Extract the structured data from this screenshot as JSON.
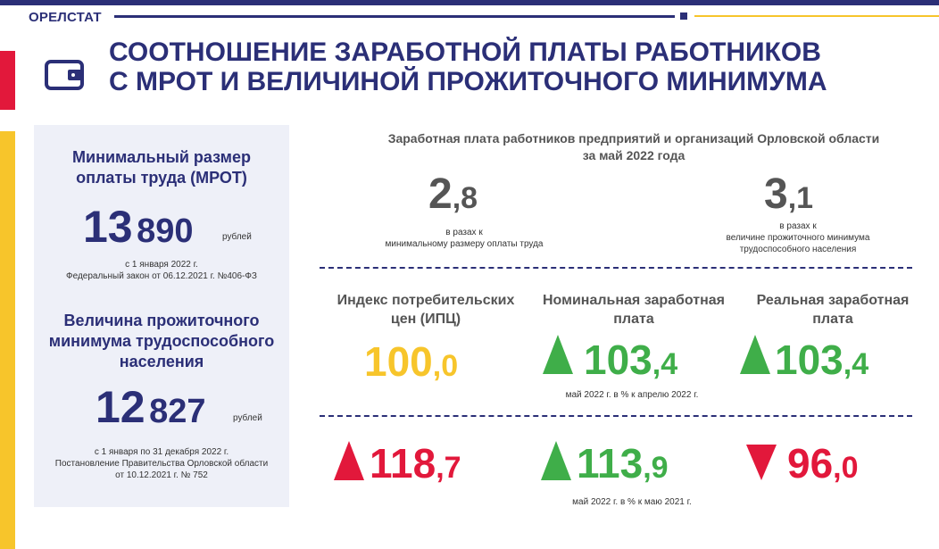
{
  "header": {
    "brand": "ОРЕЛСТАТ",
    "title_line1": "СООТНОШЕНИЕ ЗАРАБОТНОЙ ПЛАТЫ РАБОТНИКОВ",
    "title_line2": "С МРОТ И ВЕЛИЧИНОЙ ПРОЖИТОЧНОГО МИНИМУМА"
  },
  "mrot": {
    "title_line1": "Минимальный размер",
    "title_line2": "оплаты труда (МРОТ)",
    "value_main": "13",
    "value_rest": "890",
    "unit": "рублей",
    "note_line1": "с 1 января 2022 г.",
    "note_line2": "Федеральный закон от 06.12.2021 г. №406-ФЗ"
  },
  "subsistence": {
    "title_line1": "Величина прожиточного",
    "title_line2": "минимума трудоспособного",
    "title_line3": "населения",
    "value_main": "12",
    "value_rest": "827",
    "unit": "рублей",
    "note_line1": "с 1 января по 31 декабря 2022 г.",
    "note_line2": "Постановление Правительства Орловской области",
    "note_line3": "от 10.12.2021 г. № 752"
  },
  "ratio": {
    "heading_line1": "Заработная плата работников предприятий и организаций Орловской области",
    "heading_line2": "за май 2022 года",
    "left": {
      "int": "2",
      "dec": ",8",
      "note_line1": "в разах к",
      "note_line2": "минимальному размеру оплаты труда"
    },
    "right": {
      "int": "3",
      "dec": ",1",
      "note_line1": "в разах к",
      "note_line2": "величине прожиточного минимума",
      "note_line3": "трудоспособного населения"
    }
  },
  "indices": {
    "cpi_header_line1": "Индекс потребительских",
    "cpi_header_line2": "цен (ИПЦ)",
    "nominal_header_line1": "Номинальная заработная",
    "nominal_header_line2": "плата",
    "real_header_line1": "Реальная заработная",
    "real_header_line2": "плата",
    "row1": {
      "cpi_int": "100",
      "cpi_dec": ",0",
      "nominal_int": "103",
      "nominal_dec": ",4",
      "real_int": "103",
      "real_dec": ",4",
      "note": "май 2022 г. в % к апрелю 2022 г."
    },
    "row2": {
      "cpi_int": "118",
      "cpi_dec": ",7",
      "nominal_int": "113",
      "nominal_dec": ",9",
      "real_int": "96",
      "real_dec": ",0",
      "note": "май 2022 г. в % к маю 2021 г."
    }
  },
  "colors": {
    "navy": "#2b2f77",
    "yellow": "#f7c52b",
    "green": "#3fae49",
    "red": "#e2183b"
  },
  "icons": [
    "wallet-icon",
    "arrow-up-icon",
    "arrow-down-icon"
  ]
}
